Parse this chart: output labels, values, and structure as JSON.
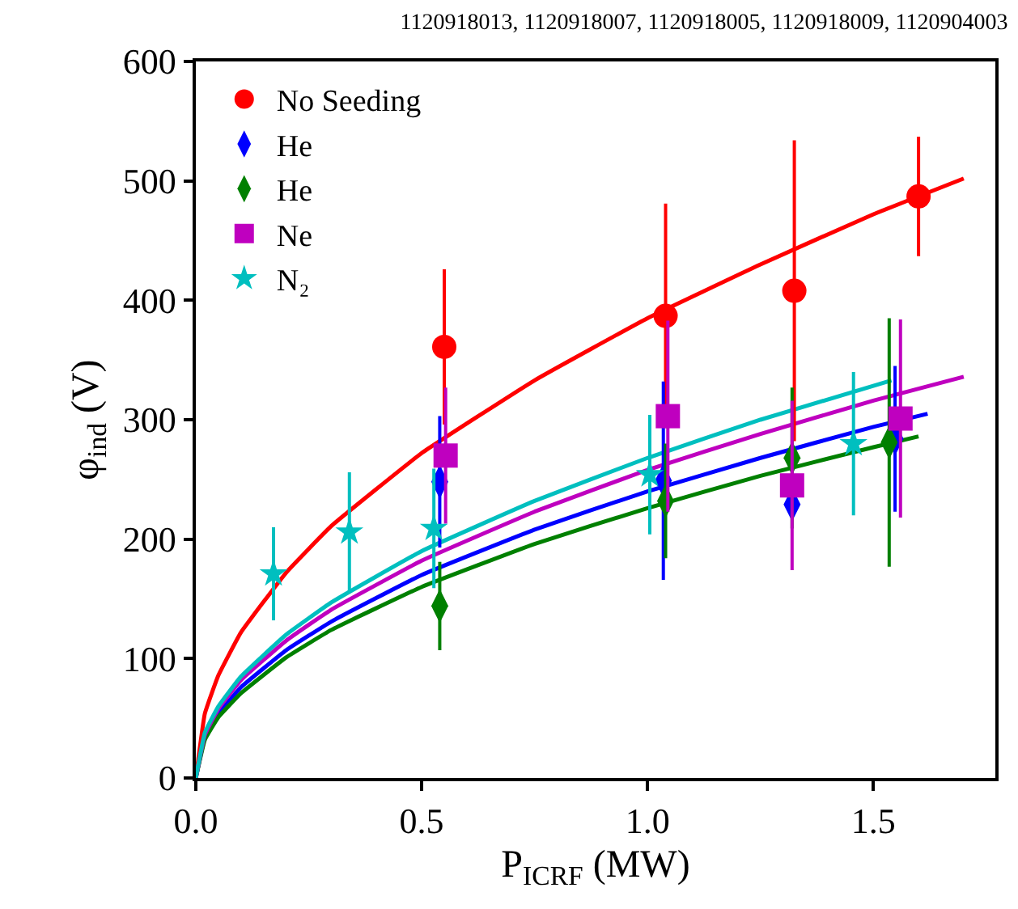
{
  "chart_data": {
    "type": "scatter",
    "title": "1120918013, 1120918007, 1120918005, 1120918009, 1120904003",
    "xlabel": "P$_{ICRF}$ (MW)",
    "ylabel": "φ$_{ind}$ (V)",
    "xlim": [
      0,
      1.77
    ],
    "ylim": [
      0,
      600
    ],
    "xticks": [
      {
        "value": 0,
        "label": "0.0"
      },
      0.5,
      {
        "value": 1,
        "label": "1.0"
      },
      1.5
    ],
    "yticks": [
      0,
      100,
      200,
      300,
      400,
      500,
      600
    ],
    "legend": "top left",
    "series": [
      {
        "type": "line",
        "marker": "none",
        "color": "#ff0000",
        "x": [
          0,
          0.02,
          0.05,
          0.1,
          0.2,
          0.3,
          0.5,
          0.75,
          1.0,
          1.25,
          1.5,
          1.7
        ],
        "values": [
          0,
          54,
          86,
          122,
          172,
          211,
          272,
          333,
          385,
          430,
          472,
          502
        ]
      },
      {
        "type": "line",
        "marker": "none",
        "color": "#0000ff",
        "x": [
          0,
          0.02,
          0.05,
          0.1,
          0.2,
          0.3,
          0.5,
          0.75,
          1.0,
          1.25,
          1.5,
          1.62
        ],
        "values": [
          0,
          34,
          54,
          76,
          107,
          131,
          170,
          208,
          240,
          268,
          294,
          305
        ]
      },
      {
        "type": "line",
        "marker": "none",
        "color": "#008000",
        "x": [
          0,
          0.02,
          0.05,
          0.1,
          0.2,
          0.3,
          0.5,
          0.75,
          1.0,
          1.25,
          1.5,
          1.6
        ],
        "values": [
          0,
          32,
          51,
          71,
          101,
          124,
          160,
          196,
          226,
          253,
          277,
          286
        ]
      },
      {
        "type": "line",
        "marker": "none",
        "color": "#bf00bf",
        "x": [
          0,
          0.02,
          0.05,
          0.1,
          0.2,
          0.3,
          0.5,
          0.75,
          1.0,
          1.25,
          1.5,
          1.7
        ],
        "values": [
          0,
          36,
          58,
          82,
          115,
          141,
          182,
          223,
          258,
          288,
          316,
          336
        ]
      },
      {
        "type": "line",
        "marker": "none",
        "color": "#00bfbf",
        "x": [
          0,
          0.02,
          0.05,
          0.1,
          0.2,
          0.3,
          0.5,
          0.75,
          1.0,
          1.25,
          1.54
        ],
        "values": [
          0,
          38,
          60,
          85,
          120,
          147,
          190,
          232,
          268,
          300,
          333
        ]
      },
      {
        "name": "No Seeding",
        "marker": "circle",
        "color": "#ff0000",
        "x": [
          0.55,
          1.04,
          1.325,
          1.6
        ],
        "values": [
          361,
          387,
          408,
          487
        ],
        "errors": [
          65,
          94,
          126,
          50
        ]
      },
      {
        "name": "He",
        "marker": "diamond",
        "color": "#0000ff",
        "x": [
          0.54,
          1.035,
          1.32,
          1.548
        ],
        "values": [
          248,
          249,
          229,
          284
        ],
        "errors": [
          55,
          83,
          null,
          61
        ]
      },
      {
        "name": "He",
        "marker": "diamond",
        "color": "#008000",
        "x": [
          0.54,
          1.04,
          1.32,
          1.535
        ],
        "values": [
          144,
          232,
          268,
          281
        ],
        "errors": [
          37,
          48,
          59,
          104
        ]
      },
      {
        "name": "Ne",
        "marker": "square",
        "color": "#bf00bf",
        "x": [
          0.553,
          1.045,
          1.32,
          1.56
        ],
        "values": [
          270,
          303,
          245,
          301
        ],
        "errors": [
          57,
          80,
          71,
          83
        ]
      },
      {
        "name": "N₂",
        "marker": "star",
        "color": "#00bfbf",
        "x": [
          0.172,
          0.34,
          0.527,
          1.005,
          1.456
        ],
        "values": [
          171,
          206,
          209,
          254,
          280
        ],
        "errors": [
          39,
          50,
          50,
          50,
          60
        ]
      }
    ]
  }
}
